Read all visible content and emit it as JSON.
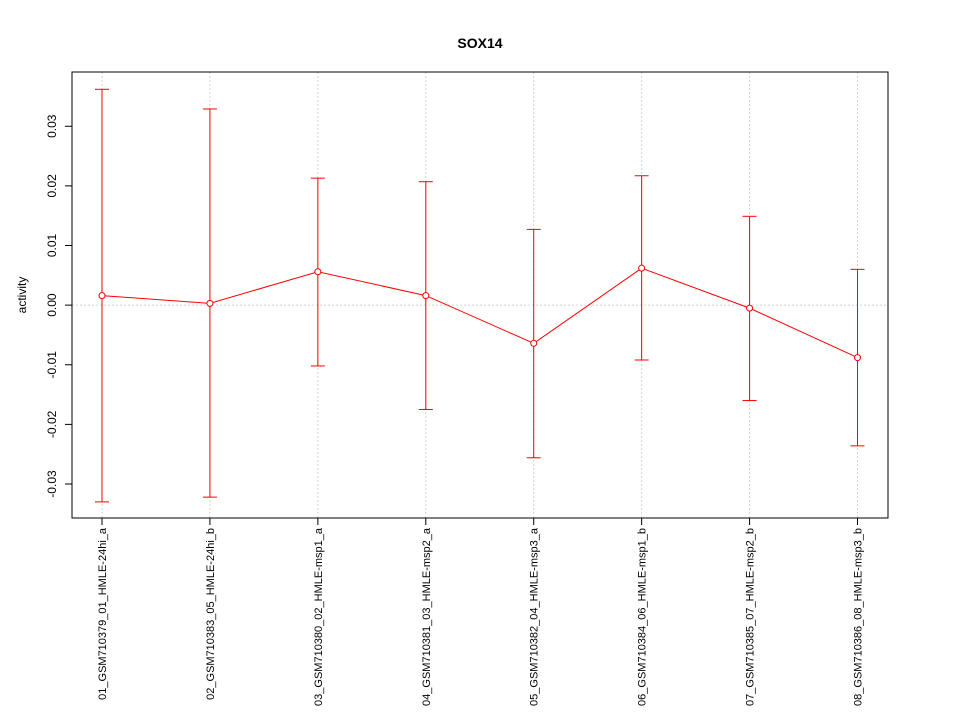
{
  "chart_data": {
    "type": "line",
    "title": "SOX14",
    "ylabel": "activity",
    "xlabel": "",
    "ylim": [
      -0.0357,
      0.0391
    ],
    "yticks": [
      -0.03,
      -0.02,
      -0.01,
      0.0,
      0.01,
      0.02,
      0.03
    ],
    "ytick_labels": [
      "-0.03",
      "-0.02",
      "-0.01",
      "0.00",
      "0.01",
      "0.02",
      "0.03"
    ],
    "grid": true,
    "categories": [
      "01_GSM710379_01_HMLE-24hi_a",
      "02_GSM710383_05_HMLE-24hi_b",
      "03_GSM710380_02_HMLE-msp1_a",
      "04_GSM710381_03_HMLE-msp2_a",
      "05_GSM710382_04_HMLE-msp3_a",
      "06_GSM710384_06_HMLE-msp1_b",
      "07_GSM710385_07_HMLE-msp2_b",
      "08_GSM710386_08_HMLE-msp3_b"
    ],
    "series": [
      {
        "values": [
          0.0016,
          0.0003,
          0.0056,
          0.0016,
          -0.0064,
          0.0062,
          -0.0005,
          -0.0088
        ],
        "upper": [
          0.0362,
          0.0329,
          0.0213,
          0.0207,
          0.0127,
          0.0217,
          0.0149,
          0.006
        ],
        "lower": [
          -0.033,
          -0.0322,
          -0.0102,
          -0.0175,
          -0.0256,
          -0.0092,
          -0.016,
          -0.0236
        ],
        "color": "#ff0000"
      }
    ]
  }
}
